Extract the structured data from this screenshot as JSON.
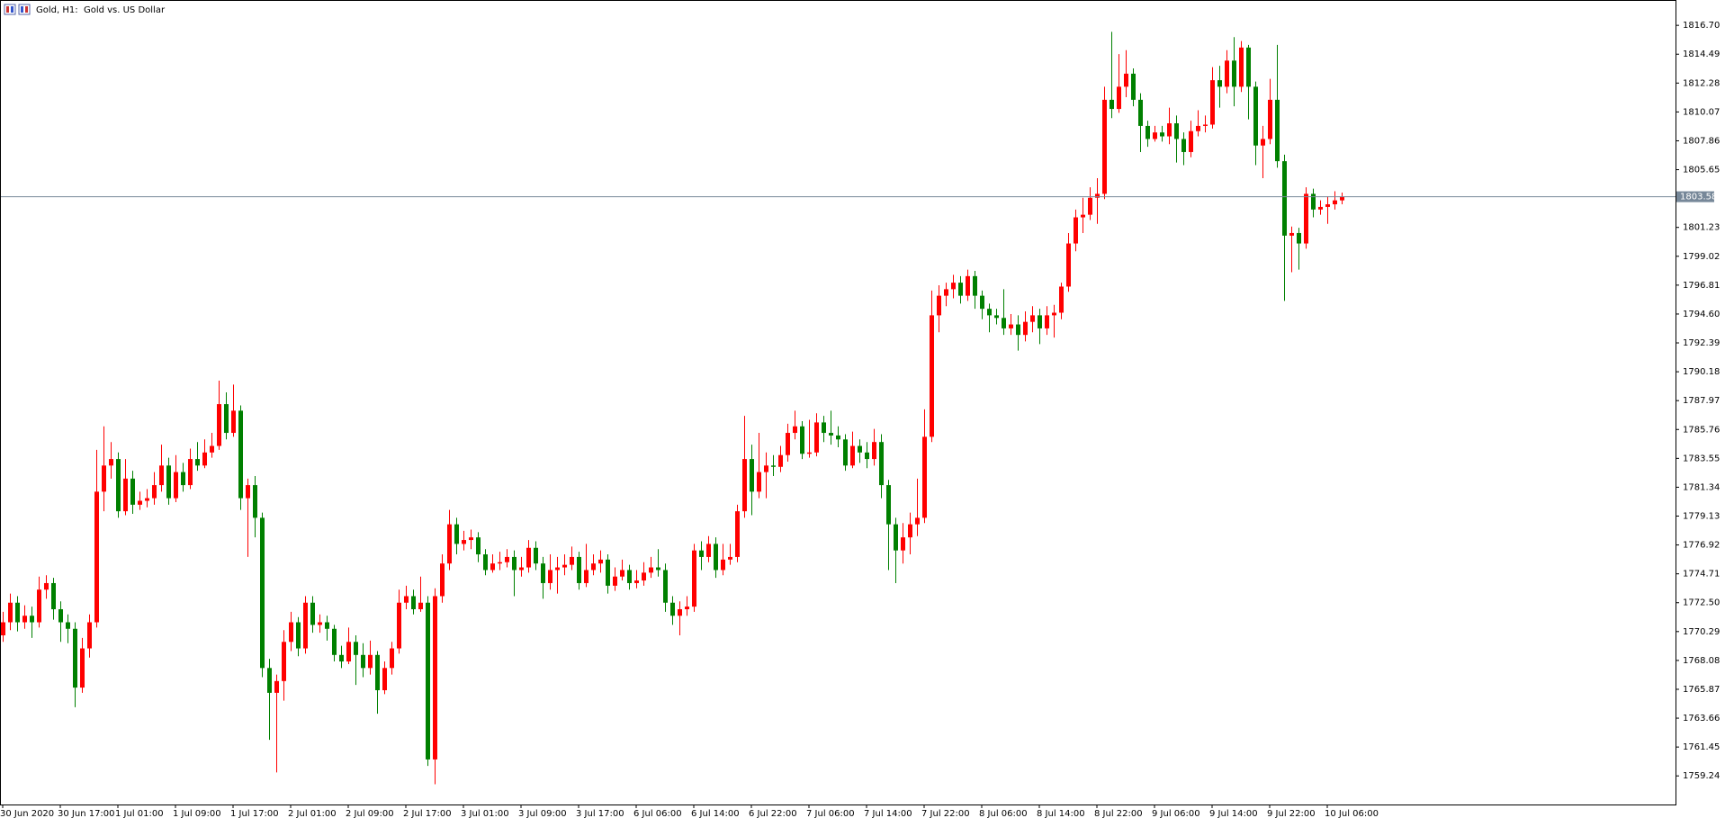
{
  "chart_data": {
    "type": "candlestick",
    "title": "Gold, H1:  Gold vs. US Dollar",
    "up_color": "#ff0000",
    "down_color": "#008000",
    "price_line_color": "#778899",
    "current_price": 1803.58,
    "ylim": [
      1757.05,
      1818.64
    ],
    "yticks": [
      {
        "value": 1816.7,
        "label": "1816.70"
      },
      1814.49,
      1812.28,
      1810.07,
      1807.86,
      1805.65,
      1801.23,
      1799.02,
      1796.81,
      {
        "value": 1794.6,
        "label": "1794.60"
      },
      1792.39,
      1790.18,
      1787.97,
      1785.76,
      1783.55,
      1781.34,
      1779.13,
      1776.92,
      1774.71,
      {
        "value": 1772.5,
        "label": "1772.50"
      },
      1770.29,
      1768.08,
      1765.87,
      1763.66,
      1761.45,
      1759.24
    ],
    "categories": [
      "30 Jun 2020",
      null,
      null,
      null,
      null,
      null,
      null,
      null,
      "30 Jun 17:00",
      null,
      null,
      null,
      null,
      null,
      null,
      null,
      "1 Jul 01:00",
      null,
      null,
      null,
      null,
      null,
      null,
      null,
      "1 Jul 09:00",
      null,
      null,
      null,
      null,
      null,
      null,
      null,
      "1 Jul 17:00",
      null,
      null,
      null,
      null,
      null,
      null,
      null,
      "2 Jul 01:00",
      null,
      null,
      null,
      null,
      null,
      null,
      null,
      "2 Jul 09:00",
      null,
      null,
      null,
      null,
      null,
      null,
      null,
      "2 Jul 17:00",
      null,
      null,
      null,
      null,
      null,
      null,
      null,
      "3 Jul 01:00",
      null,
      null,
      null,
      null,
      null,
      null,
      null,
      "3 Jul 09:00",
      null,
      null,
      null,
      null,
      null,
      null,
      null,
      "3 Jul 17:00",
      null,
      null,
      null,
      null,
      null,
      null,
      null,
      "6 Jul 06:00",
      null,
      null,
      null,
      null,
      null,
      null,
      null,
      "6 Jul 14:00",
      null,
      null,
      null,
      null,
      null,
      null,
      null,
      "6 Jul 22:00",
      null,
      null,
      null,
      null,
      null,
      null,
      null,
      "7 Jul 06:00",
      null,
      null,
      null,
      null,
      null,
      null,
      null,
      "7 Jul 14:00",
      null,
      null,
      null,
      null,
      null,
      null,
      null,
      "7 Jul 22:00",
      null,
      null,
      null,
      null,
      null,
      null,
      null,
      "8 Jul 06:00",
      null,
      null,
      null,
      null,
      null,
      null,
      null,
      "8 Jul 14:00",
      null,
      null,
      null,
      null,
      null,
      null,
      null,
      "8 Jul 22:00",
      null,
      null,
      null,
      null,
      null,
      null,
      null,
      "9 Jul 06:00",
      null,
      null,
      null,
      null,
      null,
      null,
      null,
      "9 Jul 14:00",
      null,
      null,
      null,
      null,
      null,
      null,
      null,
      "9 Jul 22:00",
      null,
      null,
      null,
      null,
      null,
      null,
      null,
      "10 Jul 06:00",
      null,
      null
    ],
    "open": [
      1770.0,
      1771.0,
      1772.5,
      1771.0,
      1771.5,
      1771.0,
      1773.5,
      1774.0,
      1772.0,
      1771.0,
      1770.5,
      1766.0,
      1769.0,
      1771.0,
      1781.0,
      1783.0,
      1783.5,
      1779.5,
      1782.0,
      1780.0,
      1780.3,
      1780.5,
      1781.5,
      1783.0,
      1780.5,
      1782.5,
      1781.5,
      1783.5,
      1783.0,
      1784.0,
      1784.5,
      1787.7,
      1785.5,
      1787.2,
      1780.5,
      1781.5,
      1779.0,
      1767.5,
      1765.6,
      1766.5,
      1769.5,
      1771.0,
      1769.0,
      1772.5,
      1770.8,
      1771.0,
      1770.5,
      1768.5,
      1768.0,
      1769.5,
      1768.5,
      1767.5,
      1768.5,
      1765.8,
      1767.5,
      1769.0,
      1772.5,
      1773.0,
      1772.0,
      1772.5,
      1760.5,
      1773.0,
      1775.5,
      1778.5,
      1777.0,
      1777.3,
      1777.5,
      1776.2,
      1775.0,
      1775.5,
      1775.6,
      1776.0,
      1775.0,
      1775.2,
      1776.7,
      1775.5,
      1774.0,
      1775.0,
      1775.2,
      1775.4,
      1776.0,
      1774.0,
      1775.0,
      1775.5,
      1775.8,
      1773.8,
      1774.5,
      1775.0,
      1774.0,
      1774.2,
      1774.8,
      1775.2,
      1775.0,
      1772.5,
      1771.5,
      1772.0,
      1772.2,
      1776.5,
      1776.0,
      1777.0,
      1775.0,
      1775.8,
      1776.0,
      1779.5,
      1783.5,
      1781.0,
      1782.5,
      1783.0,
      1782.9,
      1783.8,
      1785.5,
      1786.0,
      1783.9,
      1784.0,
      1786.3,
      1785.5,
      1785.3,
      1785.0,
      1783.0,
      1784.5,
      1784.0,
      1783.5,
      1784.8,
      1781.5,
      1778.5,
      1776.5,
      1777.5,
      1778.5,
      1779.0,
      1785.2,
      1794.5,
      1796.0,
      1796.5,
      1797.0,
      1796.0,
      1797.5,
      1796.0,
      1795.0,
      1794.5,
      1794.3,
      1793.5,
      1793.8,
      1793.0,
      1794.0,
      1794.5,
      1793.5,
      1794.5,
      1794.7,
      1796.7,
      1800.0,
      1802.0,
      1802.2,
      1803.5,
      1803.8,
      1811.0,
      1810.3,
      1812.0,
      1813.0,
      1811.0,
      1809.0,
      1808.0,
      1808.5,
      1808.2,
      1809.2,
      1808.0,
      1807.0,
      1808.6,
      1809.0,
      1809.1,
      1812.5,
      1812.0,
      1814.0,
      1812.0,
      1815.0,
      1812.0,
      1807.5,
      1808.0,
      1811.0,
      1806.3,
      1800.6,
      1800.8,
      1800.0,
      1803.8,
      1802.6,
      1802.8,
      1803.0,
      1803.3
    ],
    "high": [
      1771.8,
      1773.2,
      1773.0,
      1772.3,
      1772.2,
      1774.5,
      1774.6,
      1774.4,
      1772.6,
      1771.6,
      1771.0,
      1769.8,
      1771.6,
      1784.2,
      1786.0,
      1784.8,
      1784.0,
      1783.5,
      1782.6,
      1781.0,
      1781.2,
      1782.5,
      1784.6,
      1783.6,
      1783.8,
      1783.2,
      1784.3,
      1784.8,
      1785.0,
      1785.5,
      1789.5,
      1788.6,
      1789.2,
      1787.6,
      1782.0,
      1782.2,
      1779.4,
      1768.2,
      1767.0,
      1770.4,
      1771.8,
      1771.4,
      1773.0,
      1773.0,
      1771.6,
      1771.5,
      1770.8,
      1769.2,
      1770.6,
      1770.0,
      1769.4,
      1769.6,
      1768.8,
      1768.0,
      1769.5,
      1773.5,
      1773.8,
      1773.5,
      1774.5,
      1773.0,
      1773.6,
      1776.2,
      1779.6,
      1779.0,
      1778.0,
      1778.1,
      1777.9,
      1776.6,
      1776.2,
      1776.4,
      1776.6,
      1776.5,
      1776.0,
      1777.3,
      1777.2,
      1776.0,
      1776.2,
      1776.0,
      1776.2,
      1776.8,
      1776.4,
      1777.0,
      1776.2,
      1776.5,
      1776.2,
      1775.2,
      1775.8,
      1775.4,
      1775.0,
      1775.6,
      1776.0,
      1776.6,
      1775.5,
      1773.0,
      1772.6,
      1773.0,
      1777.0,
      1777.2,
      1777.6,
      1777.5,
      1777.0,
      1777.0,
      1780.0,
      1786.8,
      1784.6,
      1785.5,
      1784.0,
      1783.8,
      1784.5,
      1786.2,
      1787.2,
      1786.4,
      1786.5,
      1787.0,
      1786.8,
      1787.2,
      1786.0,
      1785.4,
      1785.6,
      1785.0,
      1784.8,
      1785.8,
      1785.4,
      1781.9,
      1779.0,
      1778.6,
      1779.4,
      1782.0,
      1787.3,
      1796.4,
      1796.8,
      1797.0,
      1797.6,
      1797.5,
      1798.0,
      1797.9,
      1796.4,
      1795.4,
      1795.0,
      1796.5,
      1794.6,
      1794.5,
      1794.8,
      1795.2,
      1795.0,
      1795.2,
      1795.3,
      1797.0,
      1800.8,
      1802.6,
      1803.5,
      1804.3,
      1805.0,
      1812.0,
      1816.2,
      1814.5,
      1814.8,
      1813.4,
      1811.5,
      1809.4,
      1809.0,
      1809.0,
      1810.4,
      1809.8,
      1808.5,
      1809.4,
      1810.2,
      1809.8,
      1813.5,
      1813.6,
      1814.8,
      1815.8,
      1815.5,
      1815.2,
      1812.4,
      1809.0,
      1812.6,
      1815.2,
      1806.8,
      1801.3,
      1801.2,
      1804.3,
      1804.2,
      1803.3,
      1803.6,
      1804.0,
      1803.9
    ],
    "low": [
      1769.5,
      1770.4,
      1770.3,
      1770.5,
      1769.8,
      1770.6,
      1772.8,
      1771.2,
      1769.5,
      1769.4,
      1764.5,
      1765.6,
      1768.3,
      1770.6,
      1779.5,
      1782.0,
      1779.0,
      1779.2,
      1779.3,
      1779.6,
      1779.8,
      1780.0,
      1781.0,
      1780.0,
      1780.2,
      1781.0,
      1781.2,
      1782.6,
      1782.8,
      1783.6,
      1784.2,
      1785.0,
      1785.2,
      1779.6,
      1776.0,
      1777.5,
      1766.8,
      1762.0,
      1759.5,
      1765.0,
      1768.8,
      1768.4,
      1768.6,
      1770.2,
      1770.2,
      1769.6,
      1768.0,
      1767.5,
      1767.8,
      1766.2,
      1766.8,
      1767.0,
      1764.0,
      1765.5,
      1767.0,
      1768.6,
      1772.0,
      1771.6,
      1771.8,
      1760.0,
      1758.6,
      1772.5,
      1775.0,
      1776.2,
      1776.5,
      1776.6,
      1775.6,
      1774.6,
      1774.8,
      1775.0,
      1775.2,
      1773.0,
      1774.5,
      1774.8,
      1775.0,
      1772.8,
      1773.5,
      1773.2,
      1774.6,
      1775.0,
      1773.5,
      1773.7,
      1774.6,
      1774.8,
      1773.2,
      1773.4,
      1774.2,
      1773.5,
      1773.6,
      1773.8,
      1774.4,
      1774.5,
      1771.8,
      1770.8,
      1770.0,
      1771.5,
      1771.8,
      1775.0,
      1775.6,
      1774.4,
      1774.6,
      1775.4,
      1775.6,
      1779.0,
      1779.2,
      1780.5,
      1780.5,
      1782.2,
      1782.5,
      1783.3,
      1785.0,
      1783.5,
      1783.6,
      1783.7,
      1784.8,
      1784.6,
      1784.4,
      1782.6,
      1782.8,
      1783.2,
      1782.8,
      1783.0,
      1780.5,
      1775.0,
      1774.0,
      1775.5,
      1776.2,
      1777.6,
      1778.6,
      1784.8,
      1793.2,
      1795.2,
      1795.8,
      1795.4,
      1795.6,
      1795.0,
      1794.2,
      1793.2,
      1793.8,
      1793.0,
      1793.0,
      1791.8,
      1792.5,
      1793.2,
      1792.3,
      1793.0,
      1792.8,
      1794.2,
      1796.3,
      1799.4,
      1800.8,
      1801.8,
      1801.5,
      1803.4,
      1809.6,
      1810.0,
      1811.2,
      1810.5,
      1807.0,
      1807.4,
      1807.8,
      1807.8,
      1807.6,
      1806.2,
      1806.0,
      1806.6,
      1808.2,
      1808.5,
      1808.8,
      1810.4,
      1811.5,
      1810.5,
      1811.6,
      1809.5,
      1806.0,
      1805.0,
      1807.6,
      1805.8,
      1795.6,
      1797.8,
      1798.0,
      1799.6,
      1802.0,
      1802.2,
      1801.5,
      1802.6,
      1803.0
    ],
    "close": [
      1771.0,
      1772.5,
      1771.0,
      1771.5,
      1771.0,
      1773.5,
      1774.0,
      1772.0,
      1771.0,
      1770.5,
      1766.0,
      1769.0,
      1771.0,
      1781.0,
      1783.0,
      1783.5,
      1779.5,
      1782.0,
      1780.0,
      1780.3,
      1780.5,
      1781.5,
      1783.0,
      1780.5,
      1782.5,
      1781.5,
      1783.5,
      1783.0,
      1784.0,
      1784.5,
      1787.7,
      1785.5,
      1787.2,
      1780.5,
      1781.5,
      1779.0,
      1767.5,
      1765.6,
      1766.5,
      1769.5,
      1771.0,
      1769.0,
      1772.5,
      1770.8,
      1771.0,
      1770.5,
      1768.5,
      1768.0,
      1769.5,
      1768.5,
      1767.5,
      1768.5,
      1765.8,
      1767.5,
      1769.0,
      1772.5,
      1773.0,
      1772.0,
      1772.5,
      1760.5,
      1773.0,
      1775.5,
      1778.5,
      1777.0,
      1777.3,
      1777.5,
      1776.2,
      1775.0,
      1775.5,
      1775.6,
      1776.0,
      1775.0,
      1775.2,
      1776.7,
      1775.5,
      1774.0,
      1775.0,
      1775.2,
      1775.4,
      1776.0,
      1774.0,
      1775.0,
      1775.5,
      1775.8,
      1773.8,
      1774.5,
      1775.0,
      1774.0,
      1774.2,
      1774.8,
      1775.2,
      1775.0,
      1772.5,
      1771.5,
      1772.0,
      1772.2,
      1776.5,
      1776.0,
      1777.0,
      1775.0,
      1775.8,
      1776.0,
      1779.5,
      1783.5,
      1781.0,
      1782.5,
      1783.0,
      1782.9,
      1783.8,
      1785.5,
      1786.0,
      1783.9,
      1784.0,
      1786.3,
      1785.5,
      1785.3,
      1785.0,
      1783.0,
      1784.5,
      1784.0,
      1783.5,
      1784.8,
      1781.5,
      1778.5,
      1776.5,
      1777.5,
      1778.5,
      1779.0,
      1785.2,
      1794.5,
      1796.0,
      1796.5,
      1797.0,
      1796.0,
      1797.5,
      1796.0,
      1795.0,
      1794.5,
      1794.3,
      1793.5,
      1793.8,
      1793.0,
      1794.0,
      1794.5,
      1793.5,
      1794.5,
      1794.7,
      1796.7,
      1800.0,
      1802.0,
      1802.2,
      1803.5,
      1803.8,
      1811.0,
      1810.3,
      1812.0,
      1813.0,
      1811.0,
      1809.0,
      1808.0,
      1808.5,
      1808.2,
      1809.2,
      1808.0,
      1807.0,
      1808.6,
      1809.0,
      1809.1,
      1812.5,
      1812.0,
      1814.0,
      1812.0,
      1815.0,
      1812.0,
      1807.5,
      1808.0,
      1811.0,
      1806.3,
      1800.6,
      1800.8,
      1800.0,
      1803.8,
      1802.6,
      1802.8,
      1803.0,
      1803.3,
      1803.58
    ]
  }
}
